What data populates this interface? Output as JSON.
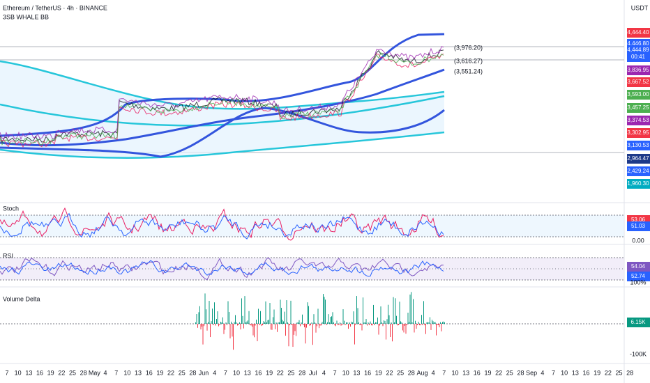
{
  "header": {
    "title": "Ethereum / TetherUS · 4h · BINANCE",
    "indicator": "3SB WHALE BB"
  },
  "price_axis": {
    "currency": "USDT",
    "labels": [
      {
        "text": "4,444.40",
        "color": "#f23645"
      },
      {
        "text": "4,446.80",
        "color": "#2962ff"
      },
      {
        "text": "4,444.89",
        "color": "#2962ff"
      },
      {
        "text": "00:41",
        "color": "#2962ff"
      },
      {
        "text": "3,836.95",
        "color": "#9c27b0"
      },
      {
        "text": "3,667.52",
        "color": "#f23645"
      },
      {
        "text": "3,593.00",
        "color": "#4caf50"
      },
      {
        "text": "3,457.25",
        "color": "#4caf50"
      },
      {
        "text": "3,374.53",
        "color": "#9c27b0"
      },
      {
        "text": "3,302.95",
        "color": "#f23645"
      },
      {
        "text": "3,130.53",
        "color": "#2962ff"
      },
      {
        "text": "2,964.47",
        "color": "#1e3a8a"
      },
      {
        "text": "2,429.24",
        "color": "#2962ff"
      },
      {
        "text": "1,960.30",
        "color": "#00acc1"
      }
    ]
  },
  "annotations": [
    "(3,976.20)",
    "(3,616.27)",
    "(3,551.24)"
  ],
  "panes": [
    {
      "name": "Stoch",
      "labels": [
        {
          "text": "53.06",
          "color": "#f23645"
        },
        {
          "text": "51.03",
          "color": "#2962ff"
        }
      ],
      "axis": "0.00"
    },
    {
      "name": "RSI",
      "labels": [
        {
          "text": "54.04",
          "color": "#7e57c2"
        },
        {
          "text": "52.74",
          "color": "#2962ff"
        }
      ],
      "axis": "100%"
    },
    {
      "name": "Volume Delta",
      "labels": [
        {
          "text": "6.15K",
          "color": "#089981"
        }
      ],
      "axis": "-100K"
    }
  ],
  "time_axis": [
    "7",
    "10",
    "13",
    "16",
    "19",
    "22",
    "25",
    "28",
    "May",
    "4",
    "7",
    "10",
    "13",
    "16",
    "19",
    "22",
    "25",
    "28",
    "Jun",
    "4",
    "7",
    "10",
    "13",
    "16",
    "19",
    "22",
    "25",
    "28",
    "Jul",
    "4",
    "7",
    "10",
    "13",
    "16",
    "19",
    "22",
    "25",
    "28",
    "Aug",
    "4",
    "7",
    "10",
    "13",
    "16",
    "19",
    "22",
    "25",
    "28",
    "Sep",
    "4",
    "7",
    "10",
    "13",
    "16",
    "19",
    "22",
    "25",
    "28"
  ]
}
